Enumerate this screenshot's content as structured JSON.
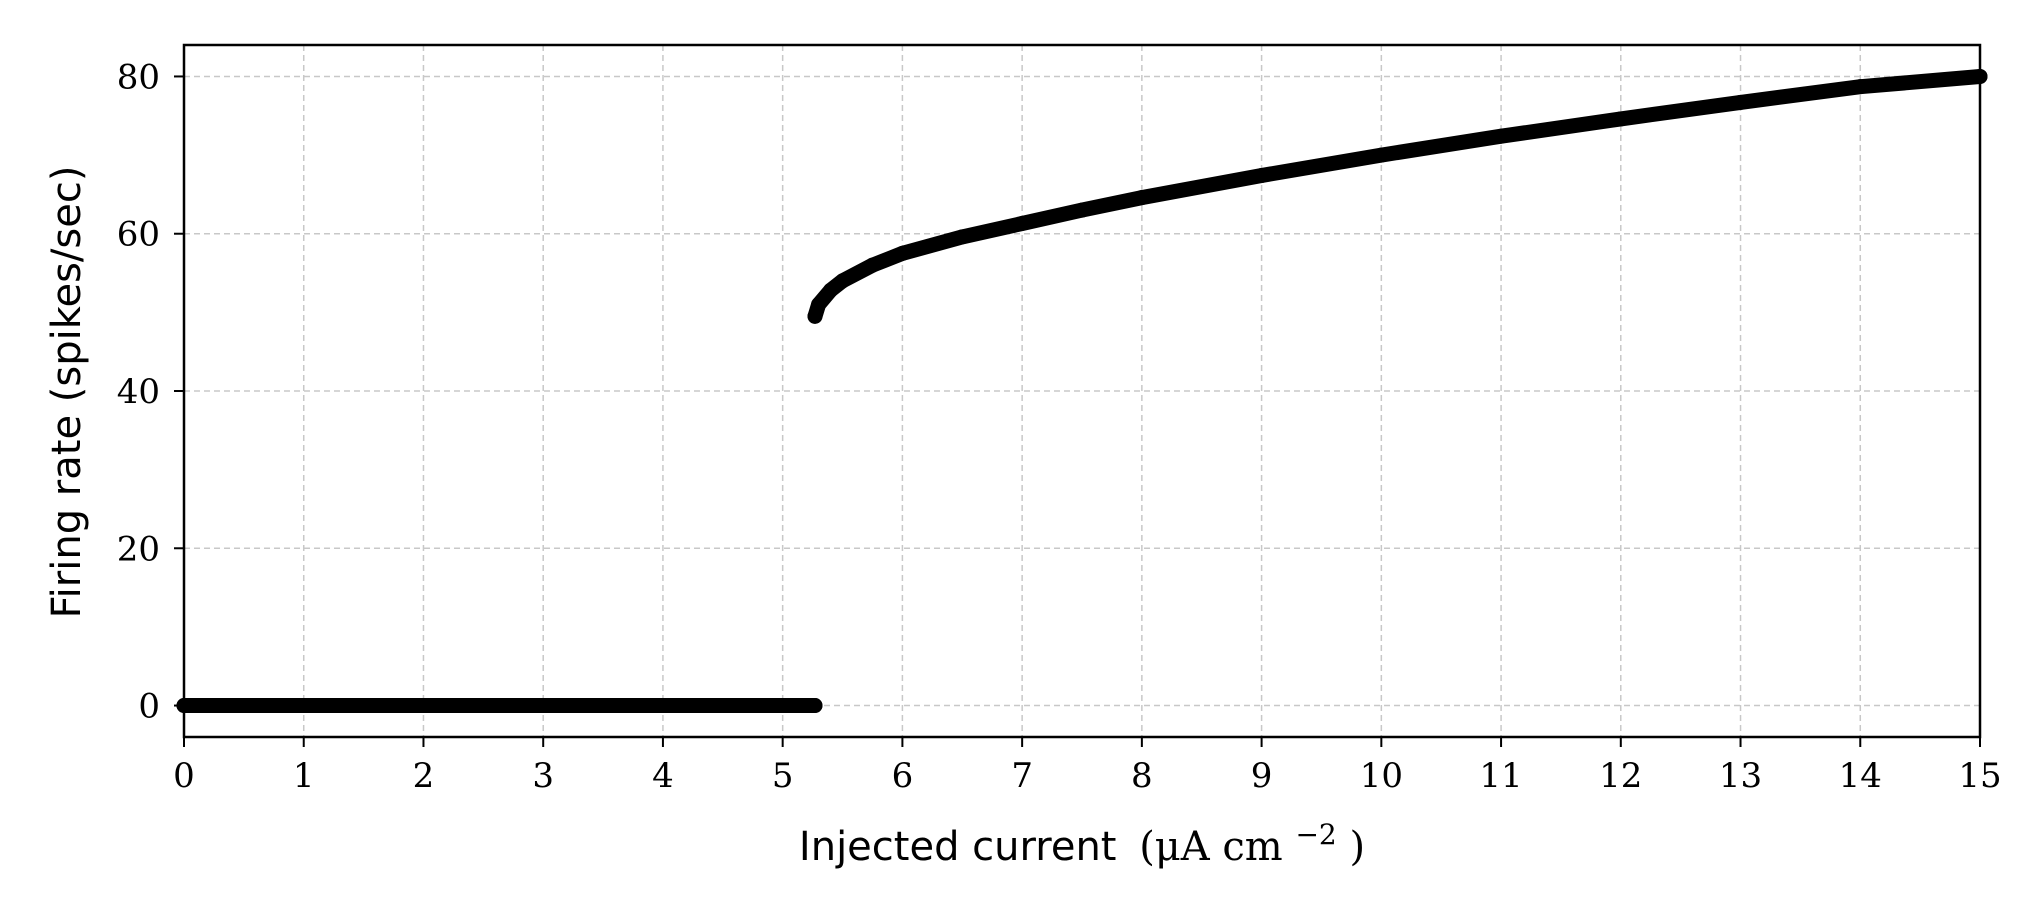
{
  "chart_data": {
    "type": "scatter",
    "xlabel": "Injected current",
    "xlabel_units": "(μA cm",
    "xlabel_units_exp": "−2",
    "xlabel_units_close": ")",
    "ylabel": "Firing rate (spikes/sec)",
    "xlim": [
      0,
      15
    ],
    "ylim": [
      -4,
      84
    ],
    "x_ticks": [
      "0",
      "1",
      "2",
      "3",
      "4",
      "5",
      "6",
      "7",
      "8",
      "9",
      "10",
      "11",
      "12",
      "13",
      "14",
      "15"
    ],
    "y_ticks": [
      "0",
      "20",
      "40",
      "60",
      "80"
    ],
    "grid": true,
    "marker_color": "#000000",
    "series": [
      {
        "values_x": [
          0,
          0.5,
          1,
          1.5,
          2,
          2.5,
          3,
          3.5,
          4,
          4.5,
          5,
          5.27
        ],
        "values_y": [
          0,
          0,
          0,
          0,
          0,
          0,
          0,
          0,
          0,
          0,
          0,
          0
        ]
      },
      {
        "values_x": [
          5.27,
          5.3,
          5.4,
          5.5,
          5.75,
          6,
          6.5,
          7,
          7.5,
          8,
          9,
          10,
          11,
          12,
          13,
          14,
          15
        ],
        "values_y": [
          49.5,
          51.0,
          52.8,
          54.0,
          56.0,
          57.5,
          59.6,
          61.3,
          63.0,
          64.6,
          67.4,
          70.0,
          72.4,
          74.6,
          76.7,
          78.7,
          80.0
        ]
      }
    ]
  }
}
